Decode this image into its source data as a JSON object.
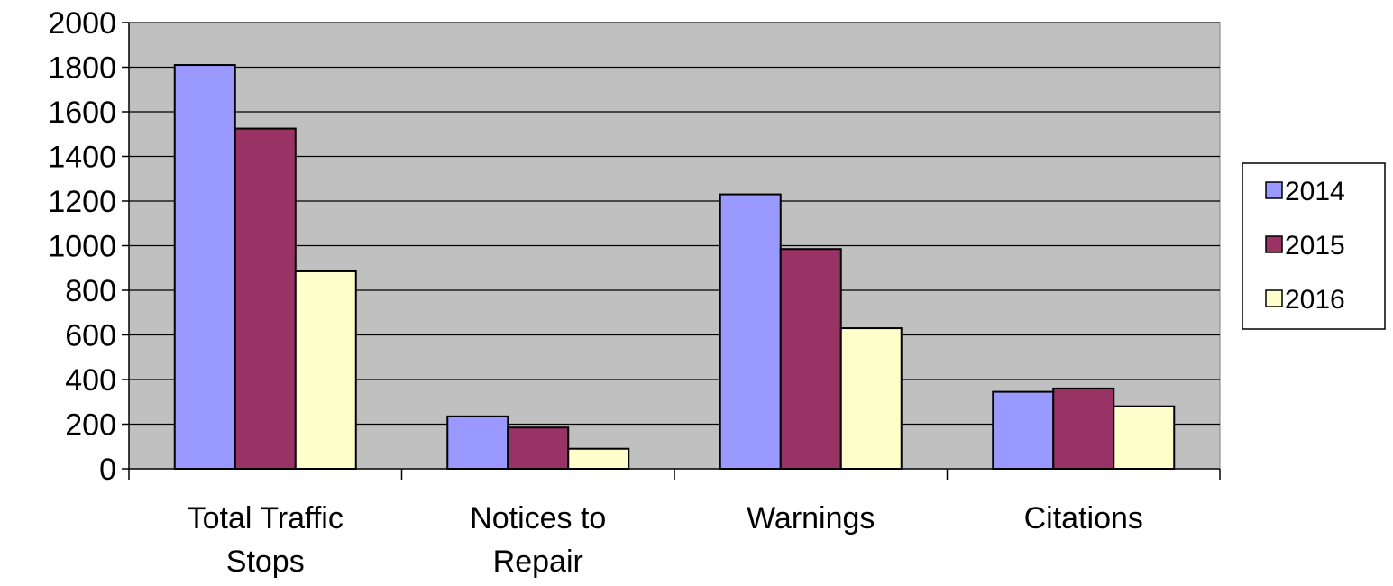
{
  "chart_data": {
    "type": "bar",
    "title": "",
    "xlabel": "",
    "ylabel": "",
    "categories": [
      [
        "Total Traffic",
        "Stops"
      ],
      [
        "Notices to",
        "Repair"
      ],
      [
        "Warnings"
      ],
      [
        "Citations"
      ]
    ],
    "series": [
      {
        "name": "2014",
        "color": "#9999ff",
        "values": [
          1810,
          235,
          1230,
          345
        ]
      },
      {
        "name": "2015",
        "color": "#993366",
        "values": [
          1525,
          185,
          985,
          360
        ]
      },
      {
        "name": "2016",
        "color": "#ffffcc",
        "values": [
          885,
          90,
          630,
          280
        ]
      }
    ],
    "ylim": [
      0,
      2000
    ],
    "yticks": [
      0,
      200,
      400,
      600,
      800,
      1000,
      1200,
      1400,
      1600,
      1800,
      2000
    ],
    "grid": true,
    "plot_background": "#c0c0c0",
    "legend_position": "right"
  }
}
